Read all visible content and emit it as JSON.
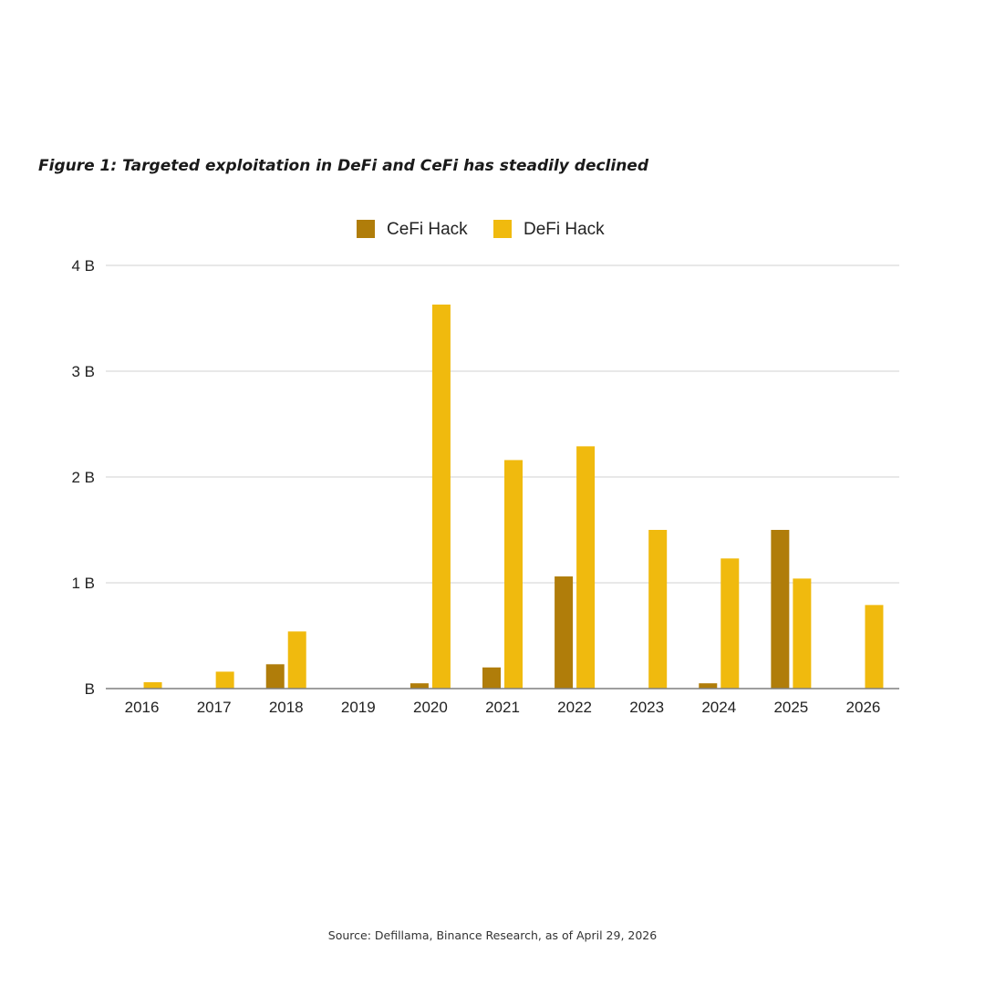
{
  "figure": {
    "title": "Figure 1: Targeted exploitation in DeFi and CeFi has steadily declined",
    "source": "Source: Defillama, Binance Research, as of April 29, 2026"
  },
  "colors": {
    "cefi": "#B07D0A",
    "defi": "#F0BA0E",
    "grid": "#d9d9d9",
    "axis": "#7f7f7f",
    "text": "#222222"
  },
  "chart_data": {
    "type": "bar",
    "categories": [
      "2016",
      "2017",
      "2018",
      "2019",
      "2020",
      "2021",
      "2022",
      "2023",
      "2024",
      "2025",
      "2026"
    ],
    "series": [
      {
        "name": "CeFi Hack",
        "values": [
          0,
          0,
          0.23,
          0,
          0.05,
          0.2,
          1.06,
          0,
          0.05,
          1.5,
          0
        ]
      },
      {
        "name": "DeFi Hack",
        "values": [
          0.06,
          0.16,
          0.54,
          0,
          3.63,
          2.16,
          2.29,
          1.5,
          1.23,
          1.04,
          0.79
        ]
      }
    ],
    "ylim": [
      0,
      4
    ],
    "yticks": [
      0,
      1,
      2,
      3,
      4
    ],
    "ytick_labels": [
      "B",
      "1 B",
      "2 B",
      "3 B",
      "4 B"
    ],
    "legend_position": "top-center",
    "grid": true
  }
}
